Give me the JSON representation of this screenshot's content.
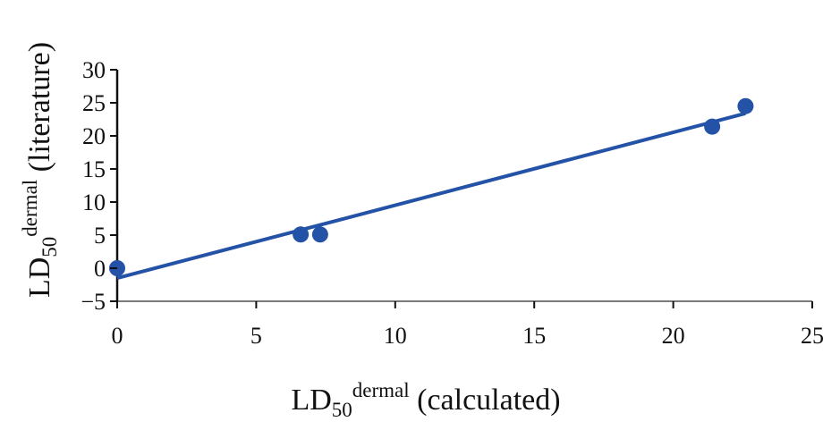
{
  "chart_data": {
    "type": "scatter",
    "title": "",
    "xlabel": "LD50 dermal (calculated)",
    "ylabel": "LD50 dermal (literature)",
    "xlabel_parts": {
      "main": "LD",
      "sub": "50",
      "sup": "dermal",
      "rest": " (calculated)"
    },
    "ylabel_parts": {
      "main": "LD",
      "sub": "50",
      "sup": "dermal",
      "rest": " (literature)"
    },
    "xlim": [
      0,
      25
    ],
    "ylim": [
      -5,
      30
    ],
    "x_ticks": [
      0,
      5,
      10,
      15,
      20,
      25
    ],
    "y_ticks": [
      -5,
      0,
      5,
      10,
      15,
      20,
      25,
      30
    ],
    "x_tick_labels": [
      "0",
      "5",
      "10",
      "15",
      "20",
      "25"
    ],
    "y_tick_labels": [
      "−5",
      "0",
      "5",
      "10",
      "15",
      "20",
      "25",
      "30"
    ],
    "grid": false,
    "legend": null,
    "series": [
      {
        "name": "data points",
        "color": "#2352A6",
        "points": [
          {
            "x": 0.0,
            "y": 0.0
          },
          {
            "x": 6.6,
            "y": 5.1
          },
          {
            "x": 7.3,
            "y": 5.1
          },
          {
            "x": 21.4,
            "y": 21.4
          },
          {
            "x": 22.6,
            "y": 24.5
          }
        ]
      }
    ],
    "trendline": {
      "type": "linear",
      "color": "#2352A6",
      "x_start": 0.0,
      "y_start": -1.5,
      "x_end": 22.6,
      "y_end": 23.4
    }
  }
}
